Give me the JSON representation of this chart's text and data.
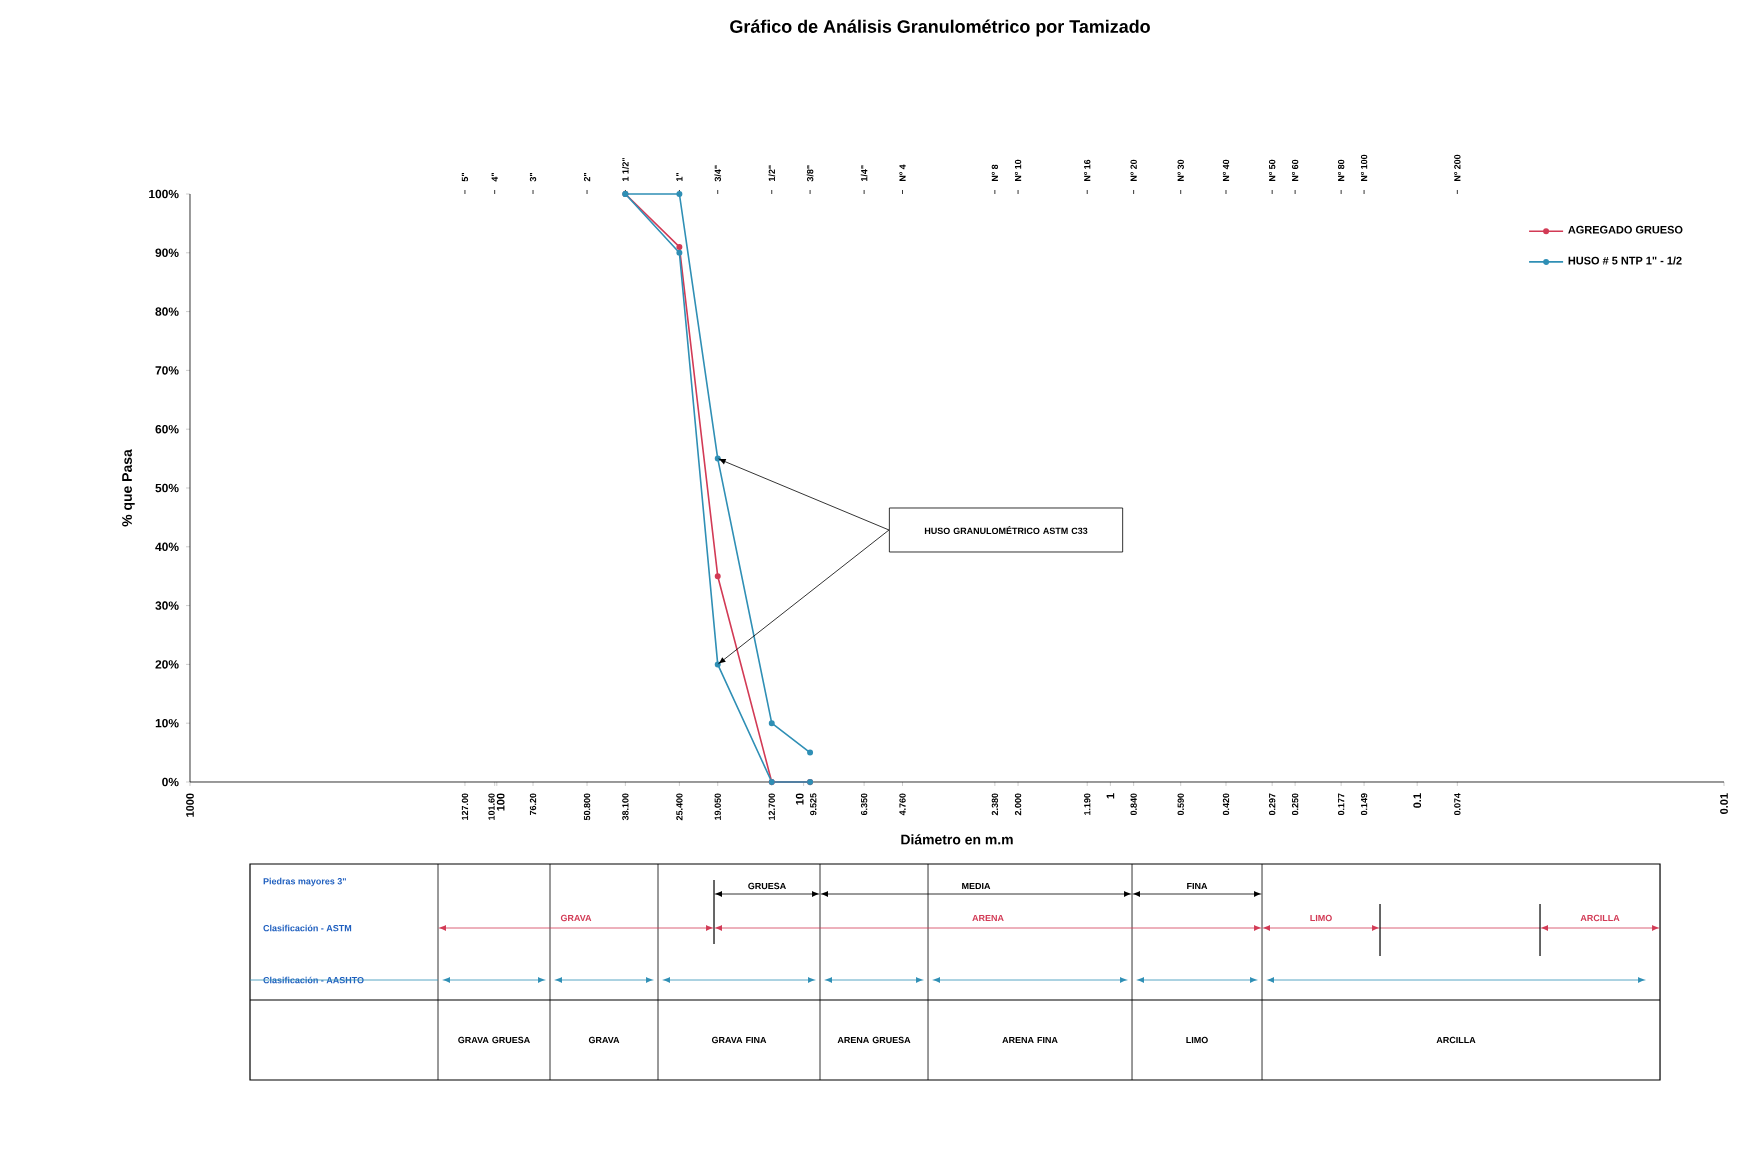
{
  "chart_data": {
    "type": "line",
    "title": "Gráfico de Análisis Granulométrico por Tamizado",
    "xlabel": "Diámetro en m.m",
    "ylabel": "% que Pasa",
    "log": "x",
    "xlim": [
      1000,
      0.01
    ],
    "xticks": [
      1000,
      100,
      10,
      1,
      0.1,
      0.01,
      {
        "value": 127,
        "label": "127.00"
      },
      {
        "value": 101.6,
        "label": "101.60"
      },
      {
        "value": 76.2,
        "label": "76.20"
      },
      {
        "value": 50.8,
        "label": "50.800"
      },
      {
        "value": 38.1,
        "label": "38.100"
      },
      {
        "value": 25.4,
        "label": "25.400"
      },
      {
        "value": 19.05,
        "label": "19.050"
      },
      {
        "value": 12.7,
        "label": "12.700"
      },
      {
        "value": 9.525,
        "label": "9.525"
      },
      {
        "value": 6.35,
        "label": "6.350"
      },
      {
        "value": 4.76,
        "label": "4.760"
      },
      {
        "value": 2.38,
        "label": "2.380"
      },
      {
        "value": 2.0,
        "label": "2.000"
      },
      {
        "value": 1.19,
        "label": "1.190"
      },
      {
        "value": 0.84,
        "label": "0.840"
      },
      {
        "value": 0.59,
        "label": "0.590"
      },
      {
        "value": 0.42,
        "label": "0.420"
      },
      {
        "value": 0.297,
        "label": "0.297"
      },
      {
        "value": 0.25,
        "label": "0.250"
      },
      {
        "value": 0.177,
        "label": "0.177"
      },
      {
        "value": 0.149,
        "label": "0.149"
      },
      {
        "value": 0.074,
        "label": "0.074"
      }
    ],
    "ylim": [
      0,
      100
    ],
    "yticks": [
      {
        "value": 0,
        "label": "0%"
      },
      {
        "value": 10,
        "label": "10%"
      },
      {
        "value": 20,
        "label": "20%"
      },
      {
        "value": 30,
        "label": "30%"
      },
      {
        "value": 40,
        "label": "40%"
      },
      {
        "value": 50,
        "label": "50%"
      },
      {
        "value": 60,
        "label": "60%"
      },
      {
        "value": 70,
        "label": "70%"
      },
      {
        "value": 80,
        "label": "80%"
      },
      {
        "value": 90,
        "label": "90%"
      },
      {
        "value": 100,
        "label": "100%"
      }
    ],
    "x": [
      38.1,
      25.4,
      19.05,
      12.7,
      9.525
    ],
    "series": [
      {
        "name": "AGREGADO GRUESO",
        "color": "#d23a55",
        "values": [
          100,
          91,
          35,
          0,
          0
        ]
      },
      {
        "name": "HUSO # 5 NTP 1\" - 1/2",
        "color": "#2f8fb5",
        "values": [
          100,
          100,
          55,
          10,
          5
        ]
      },
      {
        "color": "#2f8fb5",
        "values": [
          100,
          90,
          20,
          0,
          0
        ]
      }
    ],
    "marker": "circle",
    "legend": "top right",
    "grid": false,
    "annotations": [
      "HUSO GRANULOMÉTRICO ASTM C33",
      "Piedras mayores 3\"",
      "Clasificación - ASTM",
      "Clasificación - AASHTO",
      "GRUESA",
      "MEDIA",
      "FINA",
      "GRAVA",
      "ARENA",
      "LIMO",
      "ARCILLA",
      "GRAVA GRUESA",
      "GRAVA",
      "GRAVA FINA",
      "ARENA GRUESA",
      "ARENA FINA",
      "LIMO",
      "ARCILLA",
      "5\"",
      "4\"",
      "3\"",
      "2\"",
      "1 1/2\"",
      "1\"",
      "3/4\"",
      "1/2\"",
      "3/8\"",
      "1/4\"",
      "Nº 4",
      "Nº 8",
      "Nº 10",
      "Nº 16",
      "Nº 20",
      "Nº 30",
      "Nº 40",
      "Nº 50",
      "Nº 60",
      "Nº 80",
      "Nº 100",
      "Nº 200"
    ]
  }
}
